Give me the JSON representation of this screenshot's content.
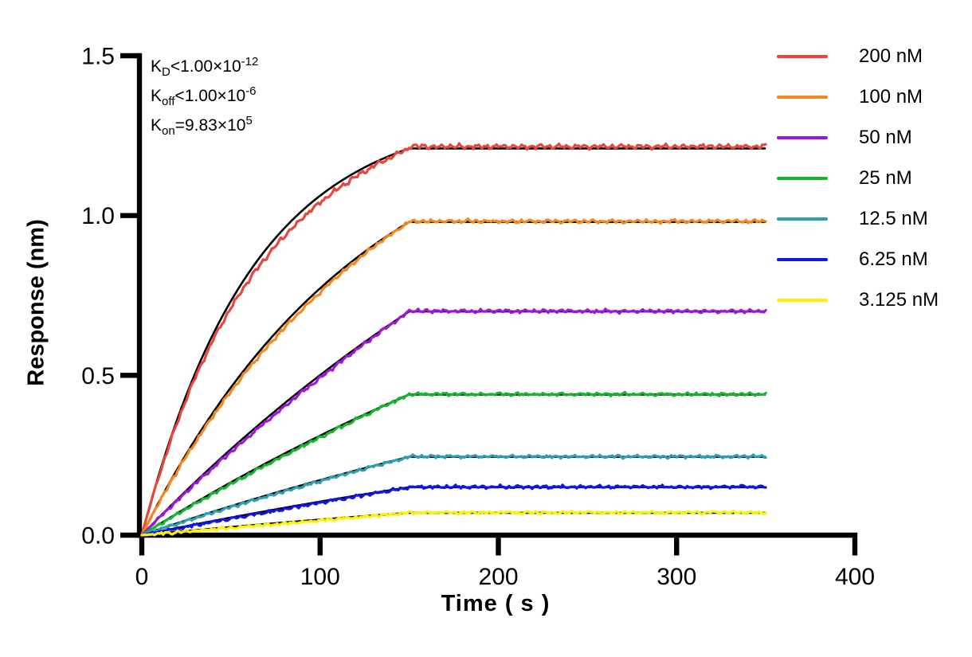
{
  "figure": {
    "background_color": "#FFFFFF",
    "text_color": "#000000"
  },
  "chart_data": {
    "type": "line",
    "title": "",
    "xlabel": "Time ( s )",
    "ylabel": "Response (nm)",
    "xlim": [
      0,
      400
    ],
    "ylim": [
      0,
      1.5
    ],
    "xticks": [
      "0",
      "100",
      "200",
      "300",
      "400"
    ],
    "yticks": [
      "0.0",
      "0.5",
      "1.0",
      "1.5"
    ],
    "grid": false,
    "legend_position": "right-outside",
    "axis_color": "#000000",
    "fit_line_color": "#000000",
    "association_end_s": 150,
    "trace_end_s": 350,
    "kinetics_annotation": [
      {
        "symbol": "K",
        "subscript": "D",
        "relation": "<",
        "mantissa": "1.00×10",
        "exponent": "-12"
      },
      {
        "symbol": "K",
        "subscript": "off",
        "relation": "<",
        "mantissa": "1.00×10",
        "exponent": "-6"
      },
      {
        "symbol": "K",
        "subscript": "on",
        "relation": "=",
        "mantissa": "9.83×10",
        "exponent": "5"
      }
    ],
    "series": [
      {
        "name": "200 nM",
        "color": "#E8463C",
        "plateau_nm": 1.21,
        "k_obs_per_s": 0.016,
        "fit_gap_nm": 0.025,
        "plateau_offset_nm": 0.006,
        "noise_nm": 0.008
      },
      {
        "name": "100 nM",
        "color": "#F6871E",
        "plateau_nm": 0.98,
        "k_obs_per_s": 0.008,
        "fit_gap_nm": 0.014,
        "plateau_offset_nm": 0.002,
        "noise_nm": 0.006
      },
      {
        "name": "50 nM",
        "color": "#A016DC",
        "plateau_nm": 0.7,
        "k_obs_per_s": 0.003,
        "fit_gap_nm": 0.01,
        "plateau_offset_nm": 0.001,
        "noise_nm": 0.006
      },
      {
        "name": "25 nM",
        "color": "#17B62F",
        "plateau_nm": 0.44,
        "k_obs_per_s": 0.0025,
        "fit_gap_nm": 0.006,
        "plateau_offset_nm": 0.001,
        "noise_nm": 0.005
      },
      {
        "name": "12.5 nM",
        "color": "#2E9FAF",
        "plateau_nm": 0.245,
        "k_obs_per_s": 0.0022,
        "fit_gap_nm": 0.004,
        "plateau_offset_nm": 0.001,
        "noise_nm": 0.005
      },
      {
        "name": "6.25 nM",
        "color": "#1414E6",
        "plateau_nm": 0.15,
        "k_obs_per_s": 0.002,
        "fit_gap_nm": 0.004,
        "plateau_offset_nm": 0.001,
        "noise_nm": 0.005
      },
      {
        "name": "3.125 nM",
        "color": "#FFF200",
        "plateau_nm": 0.07,
        "k_obs_per_s": 0.0018,
        "fit_gap_nm": 0.003,
        "plateau_offset_nm": 0.001,
        "noise_nm": 0.004
      }
    ]
  }
}
